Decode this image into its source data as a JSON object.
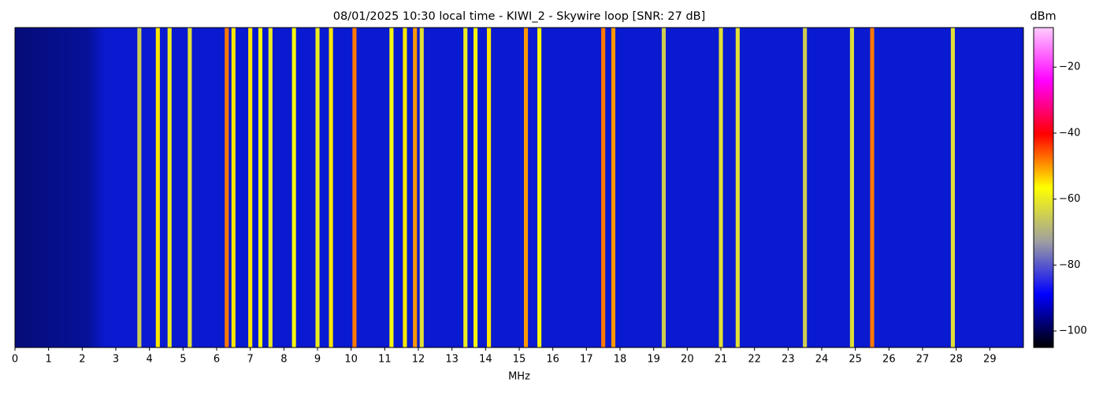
{
  "chart_data": {
    "type": "heatmap",
    "title": "08/01/2025 10:30 local time - KIWI_2 - Skywire loop [SNR: 27 dB]",
    "x_label": "MHz",
    "colorbar_label": "dBm",
    "xlim": [
      0,
      30
    ],
    "xticks": [
      0,
      1,
      2,
      3,
      4,
      5,
      6,
      7,
      8,
      9,
      10,
      11,
      12,
      13,
      14,
      15,
      16,
      17,
      18,
      19,
      20,
      21,
      22,
      23,
      24,
      25,
      26,
      27,
      28,
      29
    ],
    "clim": [
      -105,
      -8
    ],
    "cticks": [
      {
        "value": -20,
        "label": "−20"
      },
      {
        "value": -40,
        "label": "−40"
      },
      {
        "value": -60,
        "label": "−60"
      },
      {
        "value": -80,
        "label": "−80"
      },
      {
        "value": -100,
        "label": "−100"
      }
    ],
    "colormap": [
      "#000000",
      "#0000ff",
      "#a0a0a0",
      "#ffff00",
      "#ff0000",
      "#ff00ff",
      "#ffccff"
    ],
    "x": [
      3.7,
      4.25,
      4.6,
      5.2,
      6.3,
      6.5,
      7.0,
      7.3,
      7.6,
      8.3,
      9.0,
      9.4,
      10.1,
      11.2,
      11.6,
      11.9,
      12.1,
      13.4,
      13.7,
      14.1,
      15.2,
      15.6,
      17.5,
      17.8,
      19.3,
      21.0,
      21.5,
      23.5,
      24.9,
      25.5,
      27.9
    ],
    "values": [
      -65,
      -55,
      -60,
      -62,
      -48,
      -55,
      -55,
      -58,
      -60,
      -58,
      -60,
      -55,
      -48,
      -58,
      -55,
      -50,
      -62,
      -60,
      -58,
      -55,
      -50,
      -58,
      -48,
      -50,
      -65,
      -62,
      -62,
      -65,
      -62,
      -48,
      -62
    ]
  }
}
